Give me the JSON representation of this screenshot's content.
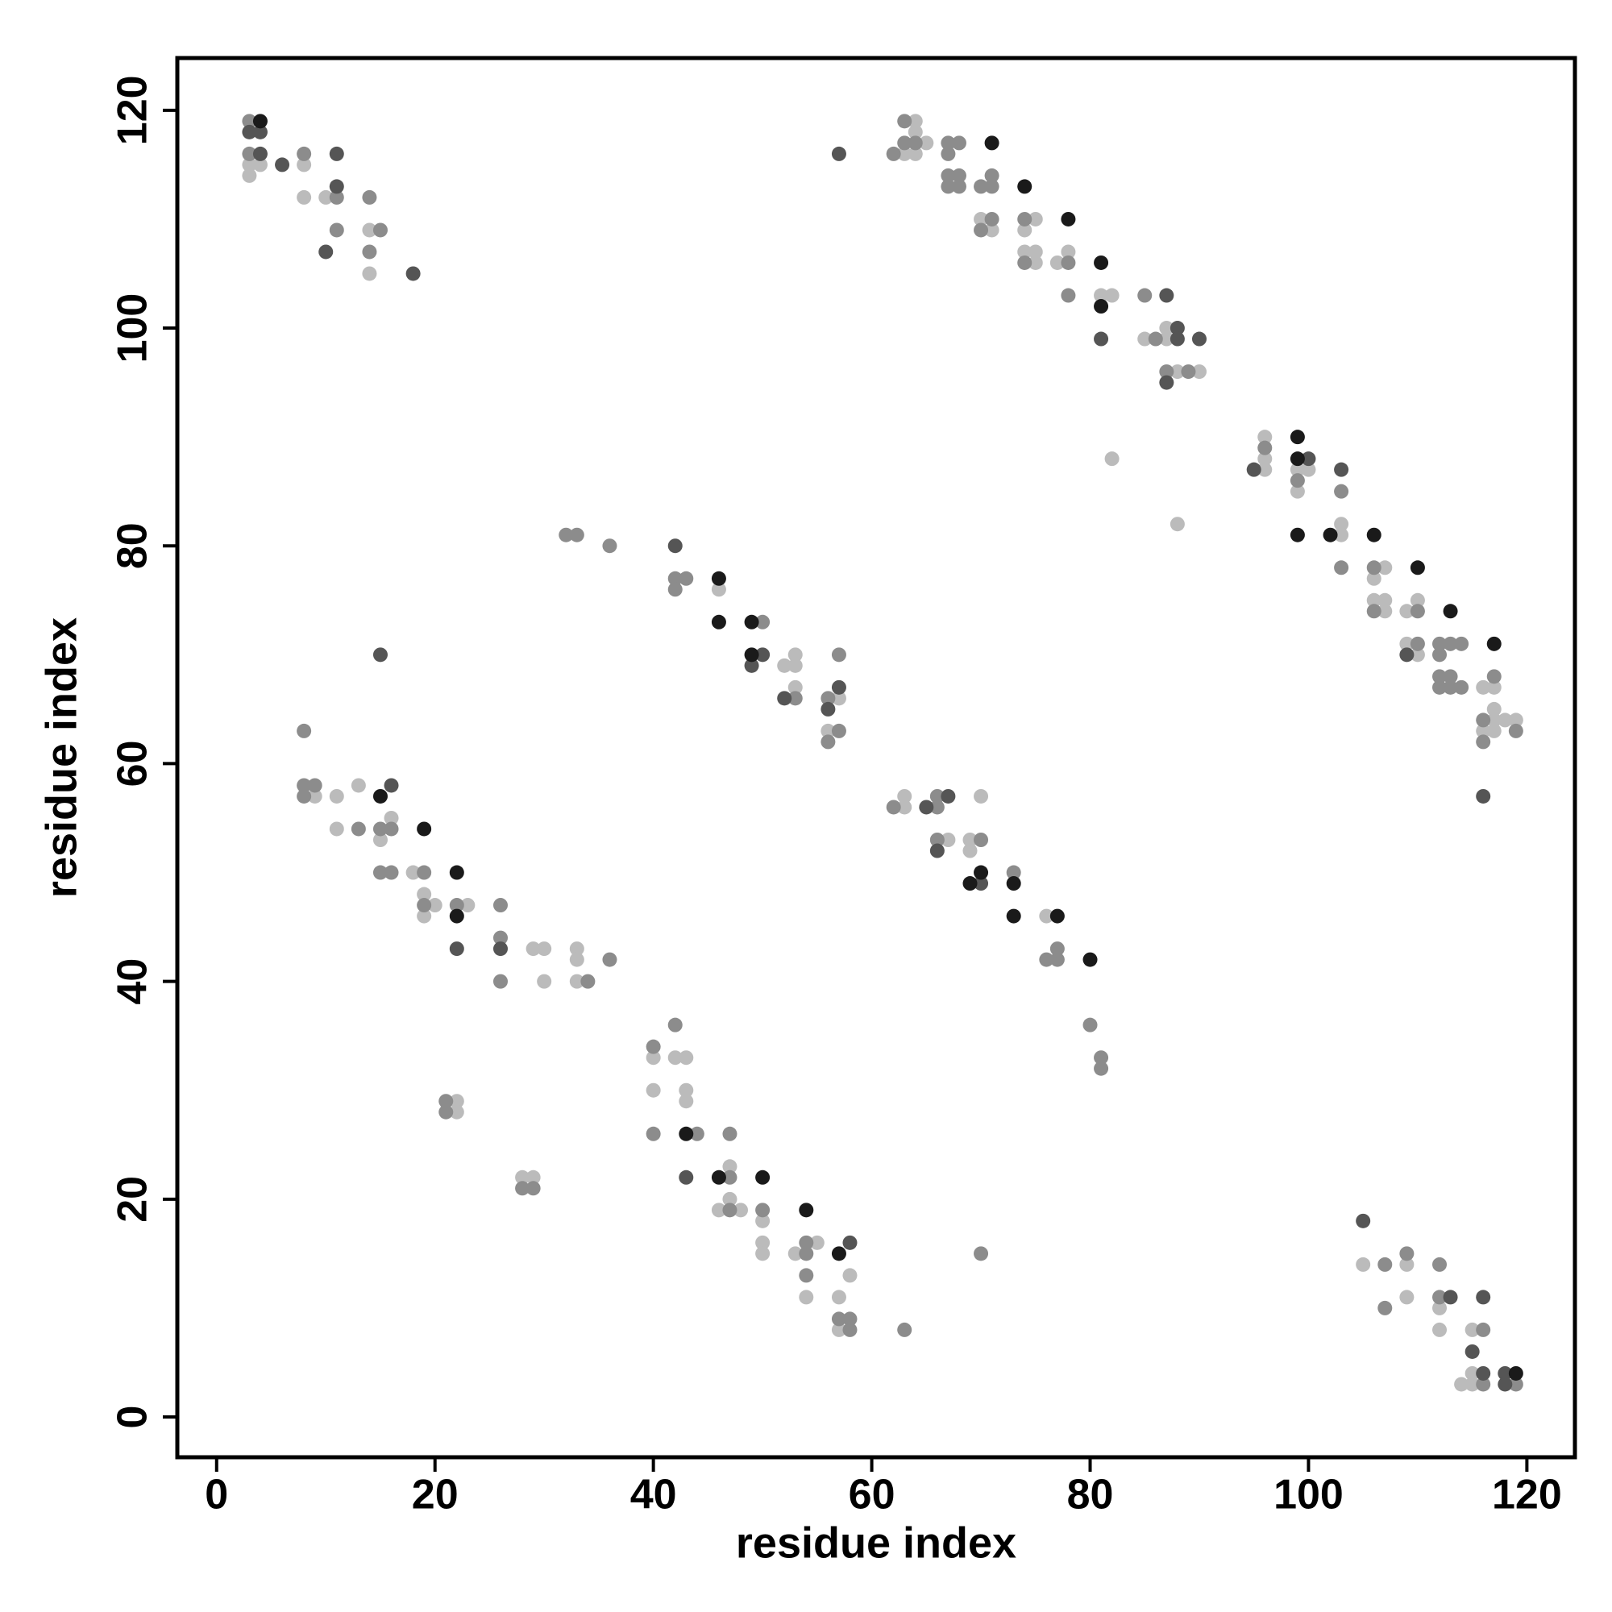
{
  "chart_data": {
    "type": "scatter",
    "x_label": "residue index",
    "y_label": "residue index",
    "xlim": [
      -3.6,
      124.4
    ],
    "ylim": [
      -3.7,
      124.8
    ],
    "xticks": [
      0,
      20,
      40,
      60,
      80,
      100,
      120
    ],
    "yticks": [
      0,
      20,
      40,
      60,
      80,
      100,
      120
    ],
    "series": [
      {
        "color": "#bbbbbb",
        "x": [
          3,
          4,
          3,
          8,
          8,
          10,
          14,
          14,
          64,
          65,
          63,
          64,
          64,
          70,
          71,
          75,
          74,
          74,
          75,
          75,
          77,
          78,
          81,
          82,
          85,
          87,
          87,
          88,
          90,
          82,
          88,
          96,
          96,
          96,
          99,
          100,
          99,
          103,
          103,
          107,
          106,
          106,
          107,
          107,
          109,
          110,
          109,
          110,
          116,
          117,
          117,
          117,
          116,
          117,
          118,
          119,
          46,
          53,
          52,
          53,
          53,
          57,
          56,
          9,
          11,
          13,
          16,
          15,
          11,
          18,
          19,
          20,
          19,
          23,
          29,
          30,
          30,
          33,
          33,
          33,
          40,
          42,
          43,
          40,
          43,
          43,
          47,
          47,
          46,
          48,
          50,
          50,
          50,
          53,
          55,
          54,
          58,
          57,
          57,
          22,
          22,
          28,
          29,
          63,
          63,
          70,
          67,
          69,
          69,
          76,
          105,
          109,
          109,
          112,
          112,
          115,
          114,
          115,
          115
        ],
        "y": [
          115,
          115,
          114,
          115,
          112,
          112,
          109,
          105,
          119,
          117,
          116,
          116,
          118,
          110,
          109,
          110,
          109,
          107,
          107,
          106,
          106,
          107,
          103,
          103,
          99,
          99,
          100,
          96,
          96,
          88,
          82,
          90,
          88,
          87,
          87,
          87,
          85,
          82,
          81,
          78,
          77,
          75,
          75,
          74,
          74,
          75,
          71,
          70,
          67,
          67,
          65,
          64,
          63,
          63,
          64,
          64,
          76,
          70,
          69,
          69,
          67,
          66,
          63,
          57,
          57,
          58,
          55,
          53,
          54,
          50,
          48,
          47,
          46,
          47,
          43,
          43,
          40,
          43,
          42,
          40,
          33,
          33,
          33,
          30,
          30,
          29,
          23,
          20,
          19,
          19,
          18,
          16,
          15,
          15,
          16,
          11,
          13,
          11,
          8,
          29,
          28,
          22,
          22,
          57,
          56,
          57,
          53,
          53,
          52,
          46,
          14,
          14,
          11,
          10,
          8,
          8,
          3,
          3,
          4
        ]
      },
      {
        "color": "#8c8c8c",
        "x": [
          3,
          3,
          8,
          11,
          14,
          11,
          15,
          14,
          62,
          63,
          63,
          64,
          67,
          68,
          67,
          67,
          68,
          67,
          68,
          70,
          71,
          71,
          71,
          70,
          74,
          74,
          78,
          78,
          85,
          86,
          87,
          89,
          96,
          99,
          103,
          103,
          106,
          106,
          110,
          110,
          112,
          113,
          114,
          112,
          112,
          113,
          112,
          113,
          114,
          117,
          116,
          119,
          116,
          32,
          33,
          36,
          42,
          43,
          42,
          50,
          53,
          56,
          57,
          57,
          56,
          8,
          8,
          9,
          8,
          15,
          16,
          13,
          15,
          16,
          19,
          19,
          22,
          26,
          26,
          26,
          34,
          36,
          40,
          42,
          40,
          44,
          47,
          47,
          47,
          50,
          54,
          54,
          54,
          57,
          58,
          58,
          63,
          21,
          21,
          28,
          29,
          62,
          66,
          66,
          66,
          70,
          73,
          76,
          77,
          77,
          80,
          81,
          81,
          70,
          107,
          107,
          109,
          112,
          112,
          116,
          116,
          119
        ],
        "y": [
          119,
          116,
          116,
          112,
          112,
          109,
          109,
          107,
          116,
          119,
          117,
          117,
          117,
          117,
          116,
          114,
          114,
          113,
          113,
          113,
          114,
          113,
          110,
          109,
          110,
          106,
          106,
          103,
          103,
          99,
          96,
          96,
          89,
          86,
          85,
          78,
          78,
          74,
          74,
          71,
          71,
          71,
          71,
          70,
          68,
          68,
          67,
          67,
          67,
          68,
          64,
          63,
          62,
          81,
          81,
          80,
          77,
          77,
          76,
          73,
          66,
          66,
          70,
          63,
          62,
          63,
          58,
          58,
          57,
          54,
          54,
          54,
          50,
          50,
          50,
          47,
          47,
          47,
          44,
          40,
          40,
          42,
          34,
          36,
          26,
          26,
          26,
          22,
          19,
          19,
          15,
          16,
          13,
          9,
          9,
          8,
          8,
          29,
          28,
          21,
          21,
          56,
          57,
          56,
          53,
          53,
          50,
          42,
          43,
          42,
          36,
          33,
          32,
          15,
          14,
          10,
          15,
          14,
          11,
          8,
          3,
          3
        ]
      },
      {
        "color": "#555555",
        "x": [
          3,
          4,
          4,
          6,
          11,
          11,
          10,
          18,
          57,
          81,
          87,
          88,
          88,
          90,
          87,
          95,
          100,
          103,
          109,
          116,
          42,
          50,
          49,
          52,
          57,
          56,
          15,
          16,
          22,
          26,
          43,
          58,
          65,
          67,
          66,
          70,
          105,
          113,
          116,
          115,
          116,
          118,
          118
        ],
        "y": [
          118,
          118,
          116,
          115,
          116,
          113,
          107,
          105,
          116,
          99,
          103,
          100,
          99,
          99,
          95,
          87,
          88,
          87,
          70,
          57,
          80,
          70,
          69,
          66,
          67,
          65,
          70,
          58,
          43,
          43,
          22,
          16,
          56,
          57,
          52,
          49,
          18,
          11,
          11,
          6,
          4,
          4,
          3
        ]
      },
      {
        "color": "#1a1a1a",
        "x": [
          4,
          71,
          74,
          78,
          81,
          81,
          99,
          99,
          99,
          102,
          106,
          110,
          113,
          117,
          46,
          46,
          49,
          49,
          15,
          19,
          22,
          22,
          43,
          46,
          50,
          54,
          57,
          70,
          69,
          73,
          73,
          77,
          80,
          119
        ],
        "y": [
          119,
          117,
          113,
          110,
          106,
          102,
          90,
          88,
          81,
          81,
          81,
          78,
          74,
          71,
          77,
          73,
          73,
          70,
          57,
          54,
          50,
          46,
          26,
          22,
          22,
          19,
          15,
          50,
          49,
          49,
          46,
          46,
          42,
          4
        ]
      }
    ]
  }
}
